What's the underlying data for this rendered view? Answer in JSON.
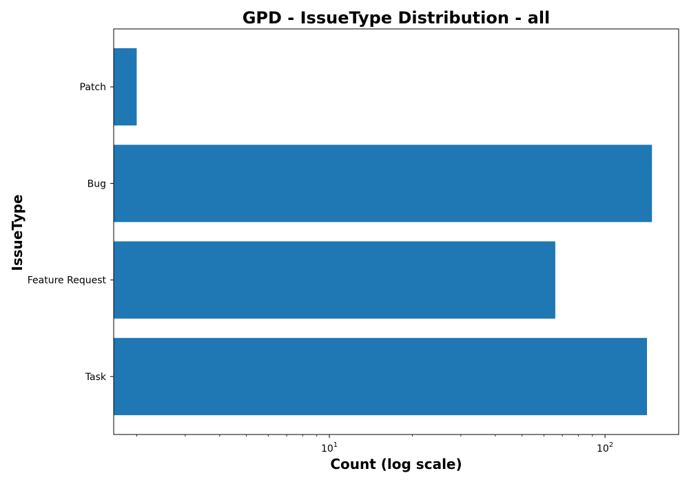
{
  "chart_data": {
    "type": "bar",
    "orientation": "horizontal",
    "title": "GPD - IssueType Distribution - all",
    "xlabel": "Count (log scale)",
    "ylabel": "IssueType",
    "x_scale": "log",
    "xlim": [
      1.65,
      185
    ],
    "categories": [
      "Task",
      "Feature Request",
      "Bug",
      "Patch"
    ],
    "values": [
      142,
      66,
      148,
      2
    ],
    "x_major_ticks": [
      {
        "value": 10,
        "base": "10",
        "exponent": "1"
      },
      {
        "value": 100,
        "base": "10",
        "exponent": "2"
      }
    ],
    "x_minor_ticks": [
      2,
      3,
      4,
      5,
      6,
      7,
      8,
      9,
      20,
      30,
      40,
      50,
      60,
      70,
      80,
      90
    ],
    "grid": false,
    "legend": "none",
    "colors": {
      "bar": "#1f77b4",
      "axis": "#000000",
      "background": "#ffffff"
    }
  }
}
